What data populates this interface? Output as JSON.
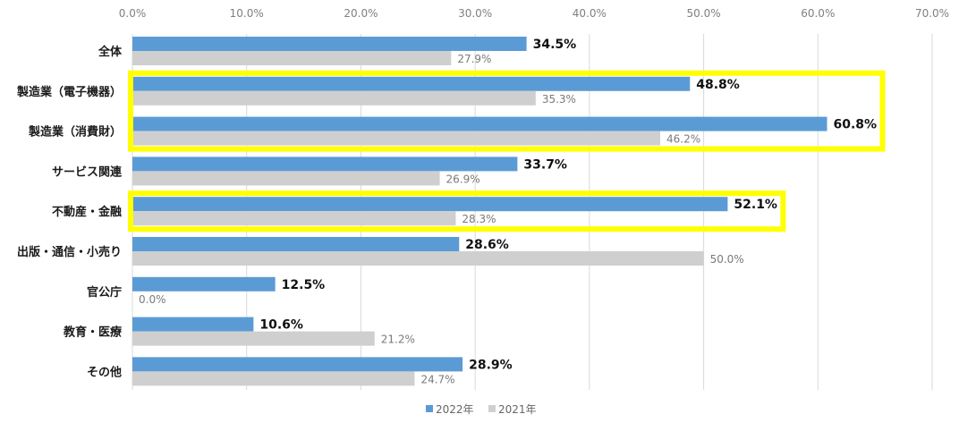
{
  "chart_data": {
    "type": "bar",
    "orientation": "horizontal",
    "title": "",
    "xlabel": "",
    "ylabel": "",
    "xlim": [
      0,
      70
    ],
    "x_ticks": [
      "0.0%",
      "10.0%",
      "20.0%",
      "30.0%",
      "40.0%",
      "50.0%",
      "60.0%",
      "70.0%"
    ],
    "x_tick_values": [
      0,
      10,
      20,
      30,
      40,
      50,
      60,
      70
    ],
    "grid": true,
    "categories": [
      "全体",
      "製造業（電子機器）",
      "製造業（消費財）",
      "サービス関連",
      "不動産・金融",
      "出版・通信・小売り",
      "官公庁",
      "教育・医療",
      "その他"
    ],
    "series": [
      {
        "name": "2022年",
        "color": "#5b9bd5",
        "values": [
          34.5,
          48.8,
          60.8,
          33.7,
          52.1,
          28.6,
          12.5,
          10.6,
          28.9
        ],
        "labels": [
          "34.5%",
          "48.8%",
          "60.8%",
          "33.7%",
          "52.1%",
          "28.6%",
          "12.5%",
          "10.6%",
          "28.9%"
        ]
      },
      {
        "name": "2021年",
        "color": "#d0cfcf",
        "values": [
          27.9,
          35.3,
          46.2,
          26.9,
          28.3,
          50.0,
          0.0,
          21.2,
          24.7
        ],
        "labels": [
          "27.9%",
          "35.3%",
          "46.2%",
          "26.9%",
          "28.3%",
          "50.0%",
          "0.0%",
          "21.2%",
          "24.7%"
        ]
      }
    ],
    "legend": {
      "position": "bottom",
      "entries": [
        "2022年",
        "2021年"
      ]
    },
    "highlights": [
      {
        "categories": [
          "製造業（電子機器）",
          "製造業（消費財）"
        ],
        "color": "#ffff00"
      },
      {
        "categories": [
          "不動産・金融"
        ],
        "color": "#ffff00"
      }
    ]
  }
}
